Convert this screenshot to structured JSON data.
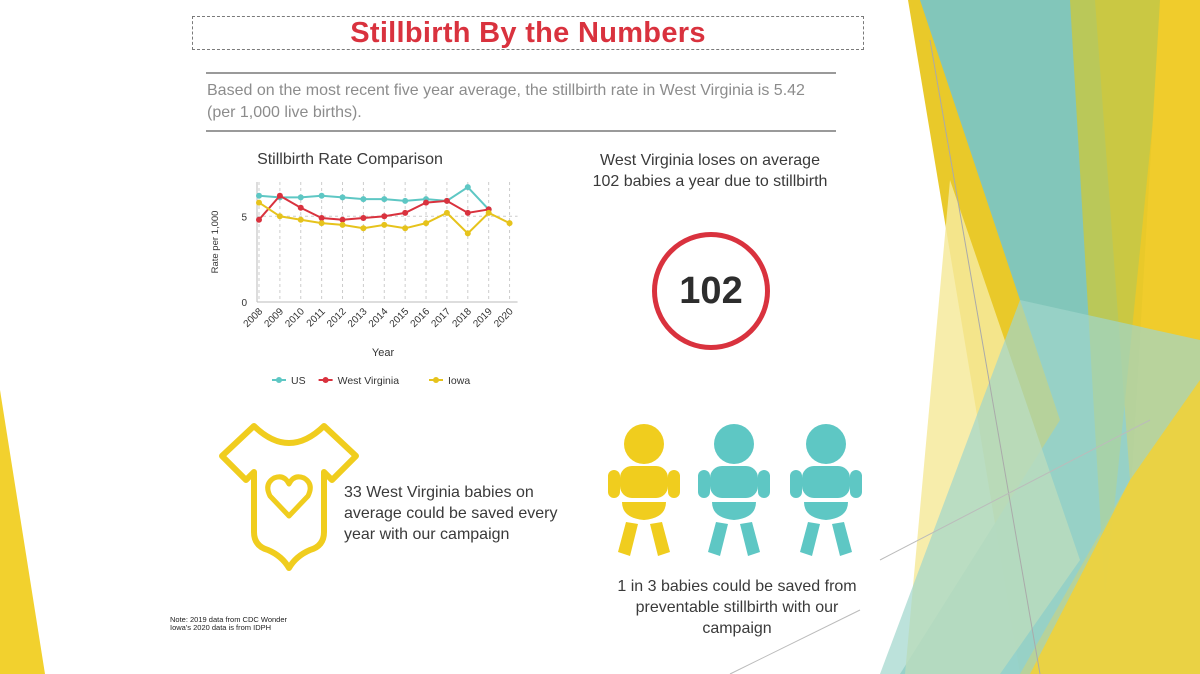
{
  "title": "Stillbirth By the Numbers",
  "intro": "Based on the most recent five year average, the stillbirth rate in West Virginia is 5.42 (per 1,000 live births).",
  "chart_data": {
    "type": "line",
    "title": "Stillbirth Rate Comparison",
    "xlabel": "Year",
    "ylabel": "Rate per 1,000",
    "x": [
      "2008",
      "2009",
      "2010",
      "2011",
      "2012",
      "2013",
      "2014",
      "2015",
      "2016",
      "2017",
      "2018",
      "2019",
      "2020"
    ],
    "yticks": [
      0,
      5
    ],
    "ylim": [
      0,
      7
    ],
    "grid": "vertical dashed",
    "legend_position": "bottom",
    "series": [
      {
        "name": "US",
        "color": "#5ec7c4",
        "values": [
          6.2,
          6.1,
          6.1,
          6.2,
          6.1,
          6.0,
          6.0,
          5.9,
          6.0,
          5.9,
          6.7,
          5.4,
          null
        ]
      },
      {
        "name": "West Virginia",
        "color": "#d9323e",
        "values": [
          4.8,
          6.2,
          5.5,
          4.9,
          4.8,
          4.9,
          5.0,
          5.2,
          5.8,
          5.9,
          5.2,
          5.4,
          null
        ]
      },
      {
        "name": "Iowa",
        "color": "#e6c31c",
        "values": [
          5.8,
          5.0,
          4.8,
          4.6,
          4.5,
          4.3,
          4.5,
          4.3,
          4.6,
          5.2,
          4.0,
          5.2,
          4.6
        ]
      }
    ]
  },
  "stat": {
    "text": "West Virginia loses on average 102 babies a year due to stillbirth",
    "number": "102"
  },
  "campaign": {
    "onesie_text": "33 West Virginia babies on average could be saved every year with our campaign",
    "babies_text": "1 in 3 babies could be saved from preventable stillbirth with our campaign"
  },
  "note": {
    "line1": "Note: 2019 data from CDC Wonder",
    "line2": "Iowa's 2020 data is from IDPH"
  },
  "colors": {
    "red": "#d9323e",
    "teal": "#5ec7c4",
    "yellow": "#e6c31c"
  },
  "icons": [
    "onesie-heart-icon",
    "baby-icon"
  ]
}
